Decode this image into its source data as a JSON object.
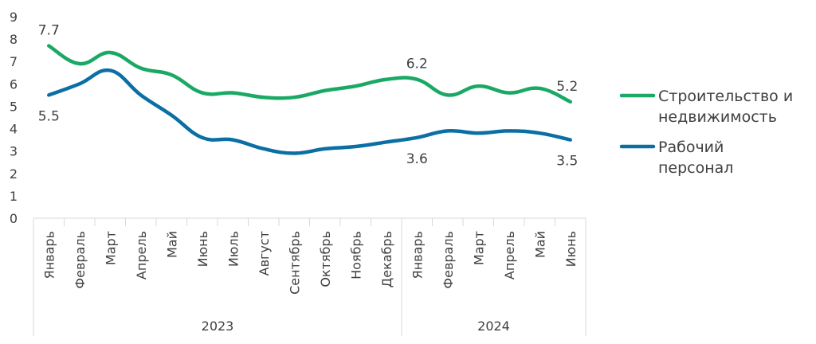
{
  "chart_data": {
    "type": "line",
    "title": "",
    "xlabel": "",
    "ylabel": "",
    "ylim": [
      0,
      9
    ],
    "yticks": [
      "0",
      "1",
      "2",
      "3",
      "4",
      "5",
      "6",
      "7",
      "8",
      "9"
    ],
    "grid": false,
    "legend_position": "right",
    "categories": [
      "Январь",
      "Февраль",
      "Март",
      "Апрель",
      "Май",
      "Июнь",
      "Июль",
      "Август",
      "Сентябрь",
      "Октябрь",
      "Ноябрь",
      "Декабрь",
      "Январь",
      "Февраль",
      "Март",
      "Апрель",
      "Май",
      "Июнь"
    ],
    "groups": [
      {
        "label": "2023",
        "start": 0,
        "end": 11
      },
      {
        "label": "2024",
        "start": 12,
        "end": 17
      }
    ],
    "series": [
      {
        "name": "Строительство и недвижимость",
        "legend_lines": [
          "Строительство и",
          "недвижимость"
        ],
        "color": "#1aa964",
        "values": [
          7.7,
          6.9,
          7.4,
          6.7,
          6.4,
          5.6,
          5.6,
          5.4,
          5.4,
          5.7,
          5.9,
          6.2,
          6.2,
          5.5,
          5.9,
          5.6,
          5.8,
          5.2
        ],
        "labels": [
          {
            "index": 0,
            "text": "7.7",
            "position": "above"
          },
          {
            "index": 12,
            "text": "6.2",
            "position": "above"
          },
          {
            "index": 17,
            "text": "5.2",
            "position": "above"
          }
        ]
      },
      {
        "name": "Рабочий персонал",
        "legend_lines": [
          "Рабочий",
          "персонал"
        ],
        "color": "#0b6fa4",
        "values": [
          5.5,
          6.0,
          6.6,
          5.5,
          4.6,
          3.6,
          3.5,
          3.1,
          2.9,
          3.1,
          3.2,
          3.4,
          3.6,
          3.9,
          3.8,
          3.9,
          3.8,
          3.5
        ],
        "labels": [
          {
            "index": 0,
            "text": "5.5",
            "position": "below"
          },
          {
            "index": 12,
            "text": "3.6",
            "position": "below"
          },
          {
            "index": 17,
            "text": "3.5",
            "position": "below"
          }
        ]
      }
    ]
  }
}
